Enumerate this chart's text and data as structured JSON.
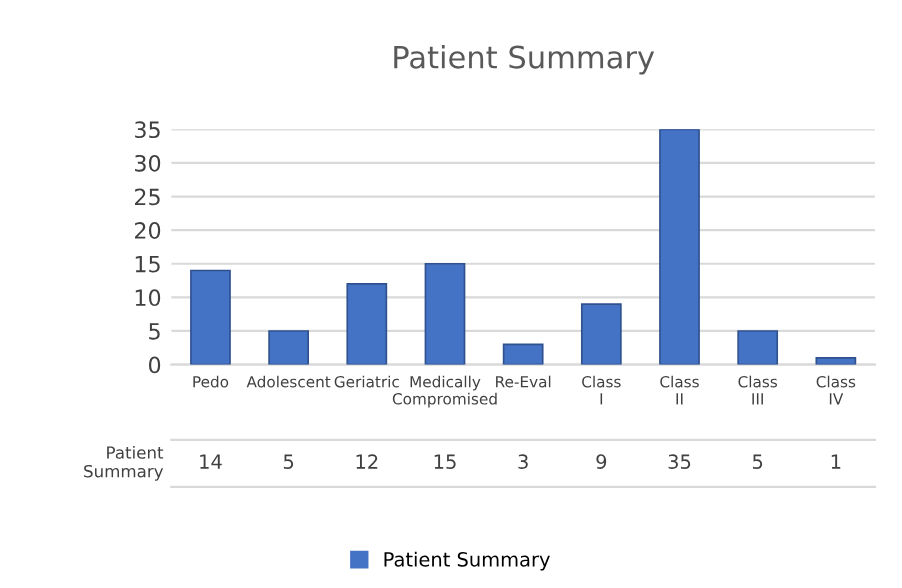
{
  "chart_data": {
    "type": "bar",
    "title": "Patient Summary",
    "categories": [
      "Pedo",
      "Adolescent",
      "Geriatric",
      "Medically Compromised",
      "Re-Eval",
      "Class I",
      "Class II",
      "Class III",
      "Class IV"
    ],
    "series": [
      {
        "name": "Patient Summary",
        "color": "#4472c4",
        "values": [
          14,
          5,
          12,
          15,
          3,
          9,
          35,
          5,
          1
        ]
      }
    ],
    "ylim": [
      0,
      35
    ],
    "yticks": [
      0,
      5,
      10,
      15,
      20,
      25,
      30,
      35
    ],
    "grid": "y",
    "legend": "bottom",
    "data_labels": true
  }
}
